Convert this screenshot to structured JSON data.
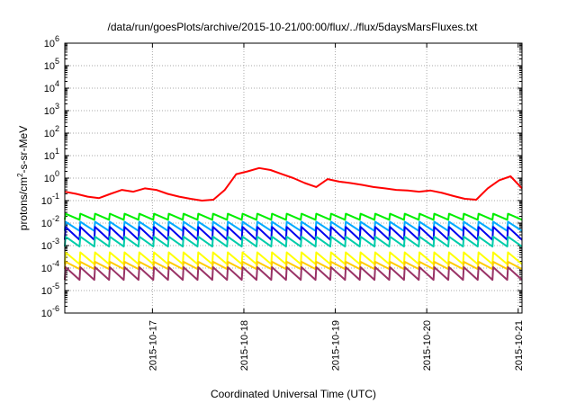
{
  "chart_data": {
    "type": "line",
    "title": "/data/run/goesPlots/archive/2015-10-21/00:00/flux/../flux/5daysMarsFluxes.txt",
    "xlabel": "Coordinated Universal Time (UTC)",
    "ylabel": "protons/cm2-s-sr-MeV",
    "ylabel_parts": {
      "base": "protons/cm",
      "sup": "2",
      "rest": "-s-sr-MeV"
    },
    "yscale": "log",
    "ylim": [
      1e-06,
      1000000.0
    ],
    "xlim": [
      "2015-10-16 01:00",
      "2015-10-21 01:00"
    ],
    "grid": true,
    "x_ticks": [
      "2015-10-17",
      "2015-10-18",
      "2015-10-19",
      "2015-10-20",
      "2015-10-21"
    ],
    "y_ticks": [
      {
        "value": 1000000.0,
        "base": "10",
        "exp": "6"
      },
      {
        "value": 100000.0,
        "base": "10",
        "exp": "5"
      },
      {
        "value": 10000.0,
        "base": "10",
        "exp": "4"
      },
      {
        "value": 1000.0,
        "base": "10",
        "exp": "3"
      },
      {
        "value": 100.0,
        "base": "10",
        "exp": "2"
      },
      {
        "value": 10.0,
        "base": "10",
        "exp": "1"
      },
      {
        "value": 1,
        "base": "10",
        "exp": "0"
      },
      {
        "value": 0.1,
        "base": "10",
        "exp": "-1"
      },
      {
        "value": 0.01,
        "base": "10",
        "exp": "-2"
      },
      {
        "value": 0.001,
        "base": "10",
        "exp": "-3"
      },
      {
        "value": 0.0001,
        "base": "10",
        "exp": "-4"
      },
      {
        "value": 1e-05,
        "base": "10",
        "exp": "-5"
      },
      {
        "value": 1e-06,
        "base": "10",
        "exp": "-6"
      }
    ],
    "series": [
      {
        "color": "#ff0000",
        "x": [
          "2015-10-16 01:00",
          "2015-10-16 04:00",
          "2015-10-16 07:00",
          "2015-10-16 10:00",
          "2015-10-16 13:00",
          "2015-10-16 16:00",
          "2015-10-16 19:00",
          "2015-10-16 22:00",
          "2015-10-17 01:00",
          "2015-10-17 04:00",
          "2015-10-17 07:00",
          "2015-10-17 10:00",
          "2015-10-17 13:00",
          "2015-10-17 16:00",
          "2015-10-17 19:00",
          "2015-10-17 22:00",
          "2015-10-18 01:00",
          "2015-10-18 04:00",
          "2015-10-18 07:00",
          "2015-10-18 10:00",
          "2015-10-18 13:00",
          "2015-10-18 16:00",
          "2015-10-18 19:00",
          "2015-10-18 22:00",
          "2015-10-19 01:00",
          "2015-10-19 04:00",
          "2015-10-19 07:00",
          "2015-10-19 10:00",
          "2015-10-19 13:00",
          "2015-10-19 16:00",
          "2015-10-19 19:00",
          "2015-10-19 22:00",
          "2015-10-20 01:00",
          "2015-10-20 04:00",
          "2015-10-20 07:00",
          "2015-10-20 10:00",
          "2015-10-20 13:00",
          "2015-10-20 16:00",
          "2015-10-20 19:00",
          "2015-10-20 22:00",
          "2015-10-21 01:00"
        ],
        "y": [
          0.25,
          0.2,
          0.15,
          0.13,
          0.2,
          0.3,
          0.25,
          0.35,
          0.3,
          0.2,
          0.15,
          0.12,
          0.1,
          0.11,
          0.3,
          1.5,
          2.0,
          2.8,
          2.3,
          1.5,
          1.0,
          0.6,
          0.4,
          0.9,
          0.7,
          0.6,
          0.5,
          0.4,
          0.35,
          0.3,
          0.28,
          0.25,
          0.28,
          0.22,
          0.16,
          0.12,
          0.11,
          0.35,
          0.8,
          1.2,
          0.35
        ]
      },
      {
        "color": "#00ee00",
        "base": 0.014,
        "amp": 0.012
      },
      {
        "color": "#00aaff",
        "base": 0.0045,
        "amp": 0.007
      },
      {
        "color": "#0000ee",
        "base": 0.0018,
        "amp": 0.005
      },
      {
        "color": "#00ccaa",
        "base": 0.0009,
        "amp": 0.0016
      },
      {
        "color": "#ffff00",
        "base": 0.00015,
        "amp": 0.00035
      },
      {
        "color": "#ffcc00",
        "base": 9e-05,
        "amp": 0.0001
      },
      {
        "color": "#993366",
        "base": 3e-05,
        "amp": 8e-05
      }
    ]
  }
}
